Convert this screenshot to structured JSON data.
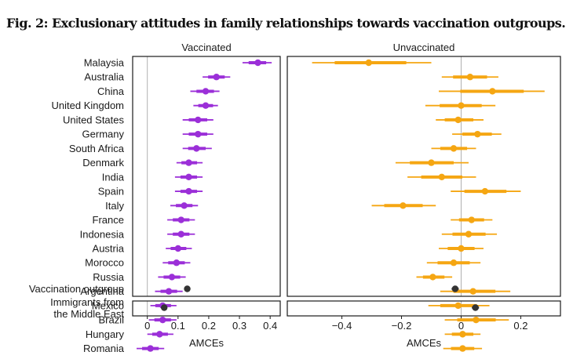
{
  "figure": {
    "title": "Fig. 2: Exclusionary attitudes in family relationships towards vaccination outgroups."
  },
  "chart_data": {
    "type": "scatter",
    "subtype": "coefficient plot (point estimates with 95% and 84% confidence intervals)",
    "panels": [
      {
        "title": "Vaccinated",
        "color": "#9b2fd8",
        "xlabel": "AMCEs",
        "xlim": [
          -0.035,
          0.42
        ],
        "xticks": [
          0,
          0.1,
          0.2,
          0.3,
          0.4
        ],
        "xtick_labels": [
          "0",
          "0.1",
          "0.2",
          "0.3",
          "0.4"
        ],
        "estimates": [
          0.36,
          0.225,
          0.19,
          0.19,
          0.165,
          0.165,
          0.16,
          0.135,
          0.135,
          0.135,
          0.12,
          0.11,
          0.11,
          0.1,
          0.095,
          0.08,
          0.07,
          0.05,
          0.05,
          0.04,
          0.01
        ],
        "ci_low": [
          0.31,
          0.18,
          0.14,
          0.15,
          0.115,
          0.115,
          0.115,
          0.095,
          0.09,
          0.09,
          0.075,
          0.065,
          0.065,
          0.06,
          0.05,
          0.035,
          0.025,
          0.01,
          0.005,
          0.0,
          -0.035
        ],
        "ci_high": [
          0.405,
          0.27,
          0.235,
          0.23,
          0.215,
          0.215,
          0.21,
          0.18,
          0.18,
          0.18,
          0.165,
          0.155,
          0.155,
          0.145,
          0.14,
          0.125,
          0.115,
          0.095,
          0.095,
          0.085,
          0.055
        ],
        "pooled": {
          "label": "Vaccination outgroup",
          "estimate": 0.13,
          "ci_low": 0.122,
          "ci_high": 0.138
        },
        "secondary": {
          "label": "Immigrants from the Middle East",
          "estimate": 0.055,
          "ci_low": 0.047,
          "ci_high": 0.063
        }
      },
      {
        "title": "Unvaccinated",
        "color": "#f5a612",
        "xlabel": "AMCEs",
        "xlim": [
          -0.57,
          0.32
        ],
        "xticks": [
          -0.4,
          -0.2,
          0,
          0.2
        ],
        "xtick_labels": [
          "−0.4",
          "−0.2",
          "0",
          "0.2"
        ],
        "estimates": [
          -0.31,
          0.03,
          0.105,
          0.0,
          -0.01,
          0.055,
          -0.025,
          -0.1,
          -0.065,
          0.08,
          -0.195,
          0.035,
          0.025,
          0.0,
          -0.025,
          -0.095,
          0.04,
          -0.01,
          0.05,
          0.005,
          0.005
        ],
        "ci_low": [
          -0.5,
          -0.065,
          -0.075,
          -0.12,
          -0.085,
          -0.03,
          -0.1,
          -0.22,
          -0.18,
          -0.035,
          -0.3,
          -0.035,
          -0.065,
          -0.075,
          -0.115,
          -0.15,
          -0.07,
          -0.11,
          -0.055,
          -0.055,
          -0.06
        ],
        "ci_high": [
          -0.1,
          0.125,
          0.28,
          0.115,
          0.075,
          0.135,
          0.05,
          0.025,
          0.05,
          0.2,
          -0.085,
          0.105,
          0.12,
          0.075,
          0.065,
          -0.03,
          0.165,
          0.095,
          0.16,
          0.065,
          0.07
        ],
        "pooled": {
          "label": "Vaccination outgroup",
          "estimate": -0.02,
          "ci_low": -0.032,
          "ci_high": -0.008
        },
        "secondary": {
          "label": "Immigrants from the Middle East",
          "estimate": 0.048,
          "ci_low": 0.036,
          "ci_high": 0.06
        }
      }
    ],
    "categories": [
      "Malaysia",
      "Australia",
      "China",
      "United Kingdom",
      "United States",
      "Germany",
      "South Africa",
      "Denmark",
      "India",
      "Spain",
      "Italy",
      "France",
      "Indonesia",
      "Austria",
      "Morocco",
      "Russia",
      "Argentina",
      "Mexico",
      "Brazil",
      "Hungary",
      "Romania"
    ],
    "pooled_label": "Vaccination outgroup",
    "pooled_color": "#333333",
    "lower_panel_label_lines": [
      "Immigrants from",
      "the Middle East"
    ],
    "zero_line_color": "#b0b0b0",
    "grid": false
  }
}
